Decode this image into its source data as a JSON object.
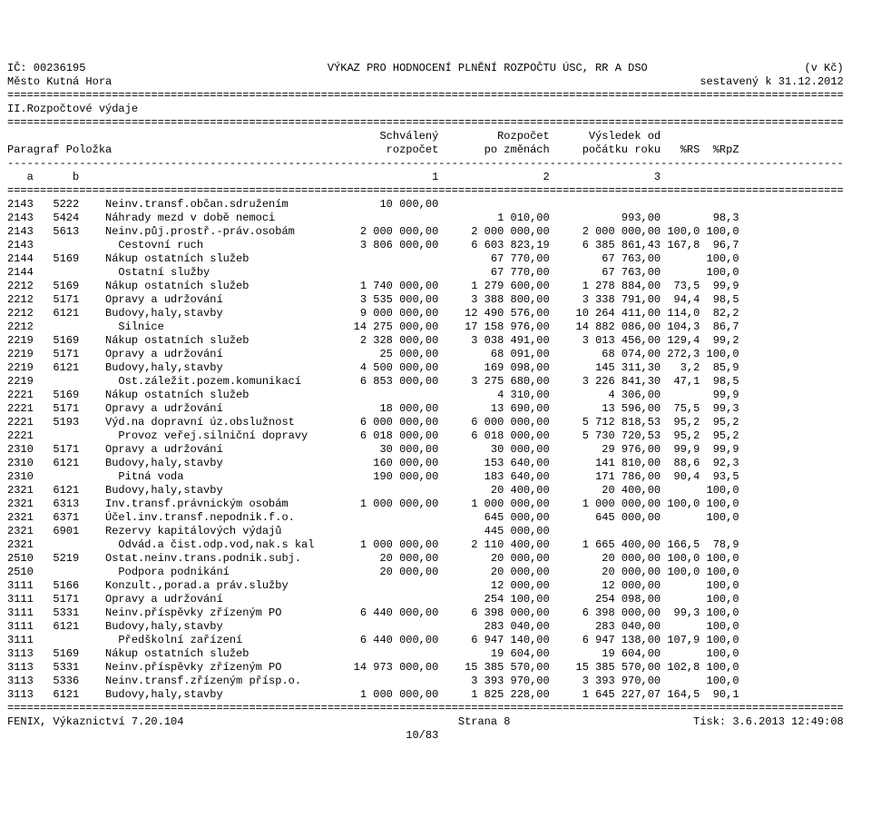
{
  "header": {
    "line1_left": "IČ: 00236195",
    "line1_center": "VÝKAZ PRO HODNOCENÍ PLNĚNÍ ROZPOČTU ÚSC, RR A DSO",
    "line1_right": "(v Kč)",
    "line2_left": "Město Kutná Hora",
    "line2_right": "sestavený k 31.12.2012",
    "section": "II.Rozpočtové výdaje",
    "col_h1_left": "Paragraf Položka",
    "col_h1_c1": "Schválený",
    "col_h1_c2": "Rozpočet",
    "col_h1_c3": "Výsledek od",
    "col_h2_c1": "rozpočet",
    "col_h2_c2": "po změnách",
    "col_h2_c3": "počátku roku",
    "col_h2_c4": "%RS",
    "col_h2_c5": "%RpZ",
    "sub_a": "a",
    "sub_b": "b",
    "sub_1": "1",
    "sub_2": "2",
    "sub_3": "3"
  },
  "sep": {
    "eq": "================================================================================================================================",
    "dash": "--------------------------------------------------------------------------------------------------------------------------------"
  },
  "rows": [
    {
      "p": "2143",
      "i": "5222",
      "t": "Neinv.transf.občan.sdružením",
      "c1": "10 000,00",
      "c2": "",
      "c3": "",
      "rs": "",
      "rpz": ""
    },
    {
      "p": "2143",
      "i": "5424",
      "t": "Náhrady mezd v době nemoci",
      "c1": "",
      "c2": "1 010,00",
      "c3": "993,00",
      "rs": "",
      "rpz": "98,3"
    },
    {
      "p": "2143",
      "i": "5613",
      "t": "Neinv.půj.prostř.-práv.osobám",
      "c1": "2 000 000,00",
      "c2": "2 000 000,00",
      "c3": "2 000 000,00",
      "rs": "100,0",
      "rpz": "100,0"
    },
    {
      "p": "2143",
      "i": "",
      "t": "Cestovní ruch",
      "c1": "3 806 000,00",
      "c2": "6 603 823,19",
      "c3": "6 385 861,43",
      "rs": "167,8",
      "rpz": "96,7"
    },
    {
      "p": "2144",
      "i": "5169",
      "t": "Nákup ostatních služeb",
      "c1": "",
      "c2": "67 770,00",
      "c3": "67 763,00",
      "rs": "",
      "rpz": "100,0"
    },
    {
      "p": "2144",
      "i": "",
      "t": "Ostatní služby",
      "c1": "",
      "c2": "67 770,00",
      "c3": "67 763,00",
      "rs": "",
      "rpz": "100,0"
    },
    {
      "p": "2212",
      "i": "5169",
      "t": "Nákup ostatních služeb",
      "c1": "1 740 000,00",
      "c2": "1 279 600,00",
      "c3": "1 278 884,00",
      "rs": "73,5",
      "rpz": "99,9"
    },
    {
      "p": "2212",
      "i": "5171",
      "t": "Opravy a udržování",
      "c1": "3 535 000,00",
      "c2": "3 388 800,00",
      "c3": "3 338 791,00",
      "rs": "94,4",
      "rpz": "98,5"
    },
    {
      "p": "2212",
      "i": "6121",
      "t": "Budovy,haly,stavby",
      "c1": "9 000 000,00",
      "c2": "12 490 576,00",
      "c3": "10 264 411,00",
      "rs": "114,0",
      "rpz": "82,2"
    },
    {
      "p": "2212",
      "i": "",
      "t": "Silnice",
      "c1": "14 275 000,00",
      "c2": "17 158 976,00",
      "c3": "14 882 086,00",
      "rs": "104,3",
      "rpz": "86,7"
    },
    {
      "p": "2219",
      "i": "5169",
      "t": "Nákup ostatních služeb",
      "c1": "2 328 000,00",
      "c2": "3 038 491,00",
      "c3": "3 013 456,00",
      "rs": "129,4",
      "rpz": "99,2"
    },
    {
      "p": "2219",
      "i": "5171",
      "t": "Opravy a udržování",
      "c1": "25 000,00",
      "c2": "68 091,00",
      "c3": "68 074,00",
      "rs": "272,3",
      "rpz": "100,0"
    },
    {
      "p": "2219",
      "i": "6121",
      "t": "Budovy,haly,stavby",
      "c1": "4 500 000,00",
      "c2": "169 098,00",
      "c3": "145 311,30",
      "rs": "3,2",
      "rpz": "85,9"
    },
    {
      "p": "2219",
      "i": "",
      "t": "Ost.záležit.pozem.komunikací",
      "c1": "6 853 000,00",
      "c2": "3 275 680,00",
      "c3": "3 226 841,30",
      "rs": "47,1",
      "rpz": "98,5"
    },
    {
      "p": "2221",
      "i": "5169",
      "t": "Nákup ostatních služeb",
      "c1": "",
      "c2": "4 310,00",
      "c3": "4 306,00",
      "rs": "",
      "rpz": "99,9"
    },
    {
      "p": "2221",
      "i": "5171",
      "t": "Opravy a udržování",
      "c1": "18 000,00",
      "c2": "13 690,00",
      "c3": "13 596,00",
      "rs": "75,5",
      "rpz": "99,3"
    },
    {
      "p": "2221",
      "i": "5193",
      "t": "Výd.na dopravní úz.obslužnost",
      "c1": "6 000 000,00",
      "c2": "6 000 000,00",
      "c3": "5 712 818,53",
      "rs": "95,2",
      "rpz": "95,2"
    },
    {
      "p": "2221",
      "i": "",
      "t": "Provoz veřej.silniční dopravy",
      "c1": "6 018 000,00",
      "c2": "6 018 000,00",
      "c3": "5 730 720,53",
      "rs": "95,2",
      "rpz": "95,2"
    },
    {
      "p": "2310",
      "i": "5171",
      "t": "Opravy a udržování",
      "c1": "30 000,00",
      "c2": "30 000,00",
      "c3": "29 976,00",
      "rs": "99,9",
      "rpz": "99,9"
    },
    {
      "p": "2310",
      "i": "6121",
      "t": "Budovy,haly,stavby",
      "c1": "160 000,00",
      "c2": "153 640,00",
      "c3": "141 810,00",
      "rs": "88,6",
      "rpz": "92,3"
    },
    {
      "p": "2310",
      "i": "",
      "t": "Pitná voda",
      "c1": "190 000,00",
      "c2": "183 640,00",
      "c3": "171 786,00",
      "rs": "90,4",
      "rpz": "93,5"
    },
    {
      "p": "2321",
      "i": "6121",
      "t": "Budovy,haly,stavby",
      "c1": "",
      "c2": "20 400,00",
      "c3": "20 400,00",
      "rs": "",
      "rpz": "100,0"
    },
    {
      "p": "2321",
      "i": "6313",
      "t": "Inv.transf.právnickým osobám",
      "c1": "1 000 000,00",
      "c2": "1 000 000,00",
      "c3": "1 000 000,00",
      "rs": "100,0",
      "rpz": "100,0"
    },
    {
      "p": "2321",
      "i": "6371",
      "t": "Účel.inv.transf.nepodnik.f.o.",
      "c1": "",
      "c2": "645 000,00",
      "c3": "645 000,00",
      "rs": "",
      "rpz": "100,0"
    },
    {
      "p": "2321",
      "i": "6901",
      "t": "Rezervy kapitálových výdajů",
      "c1": "",
      "c2": "445 000,00",
      "c3": "",
      "rs": "",
      "rpz": ""
    },
    {
      "p": "2321",
      "i": "",
      "t": "Odvád.a čist.odp.vod,nak.s kal",
      "c1": "1 000 000,00",
      "c2": "2 110 400,00",
      "c3": "1 665 400,00",
      "rs": "166,5",
      "rpz": "78,9"
    },
    {
      "p": "2510",
      "i": "5219",
      "t": "Ostat.neinv.trans.podnik.subj.",
      "c1": "20 000,00",
      "c2": "20 000,00",
      "c3": "20 000,00",
      "rs": "100,0",
      "rpz": "100,0"
    },
    {
      "p": "2510",
      "i": "",
      "t": "Podpora podnikání",
      "c1": "20 000,00",
      "c2": "20 000,00",
      "c3": "20 000,00",
      "rs": "100,0",
      "rpz": "100,0"
    },
    {
      "p": "3111",
      "i": "5166",
      "t": "Konzult.,porad.a práv.služby",
      "c1": "",
      "c2": "12 000,00",
      "c3": "12 000,00",
      "rs": "",
      "rpz": "100,0"
    },
    {
      "p": "3111",
      "i": "5171",
      "t": "Opravy a udržování",
      "c1": "",
      "c2": "254 100,00",
      "c3": "254 098,00",
      "rs": "",
      "rpz": "100,0"
    },
    {
      "p": "3111",
      "i": "5331",
      "t": "Neinv.příspěvky zřízeným PO",
      "c1": "6 440 000,00",
      "c2": "6 398 000,00",
      "c3": "6 398 000,00",
      "rs": "99,3",
      "rpz": "100,0"
    },
    {
      "p": "3111",
      "i": "6121",
      "t": "Budovy,haly,stavby",
      "c1": "",
      "c2": "283 040,00",
      "c3": "283 040,00",
      "rs": "",
      "rpz": "100,0"
    },
    {
      "p": "3111",
      "i": "",
      "t": "Předškolní zařízení",
      "c1": "6 440 000,00",
      "c2": "6 947 140,00",
      "c3": "6 947 138,00",
      "rs": "107,9",
      "rpz": "100,0"
    },
    {
      "p": "3113",
      "i": "5169",
      "t": "Nákup ostatních služeb",
      "c1": "",
      "c2": "19 604,00",
      "c3": "19 604,00",
      "rs": "",
      "rpz": "100,0"
    },
    {
      "p": "3113",
      "i": "5331",
      "t": "Neinv.příspěvky zřízeným PO",
      "c1": "14 973 000,00",
      "c2": "15 385 570,00",
      "c3": "15 385 570,00",
      "rs": "102,8",
      "rpz": "100,0"
    },
    {
      "p": "3113",
      "i": "5336",
      "t": "Neinv.transf.zřízeným přísp.o.",
      "c1": "",
      "c2": "3 393 970,00",
      "c3": "3 393 970,00",
      "rs": "",
      "rpz": "100,0"
    },
    {
      "p": "3113",
      "i": "6121",
      "t": "Budovy,haly,stavby",
      "c1": "1 000 000,00",
      "c2": "1 825 228,00",
      "c3": "1 645 227,07",
      "rs": "164,5",
      "rpz": "90,1"
    }
  ],
  "footer": {
    "left": "FENIX, Výkaznictví 7.20.104",
    "center": "Strana 8",
    "right": "Tisk: 3.6.2013 12:49:08",
    "page": "10/83"
  },
  "widths": {
    "p": 4,
    "gap1": 3,
    "i": 4,
    "gap2": 4,
    "t": 34,
    "c1": 17,
    "c2": 17,
    "c3": 17,
    "rs": 6,
    "rpz": 6
  }
}
